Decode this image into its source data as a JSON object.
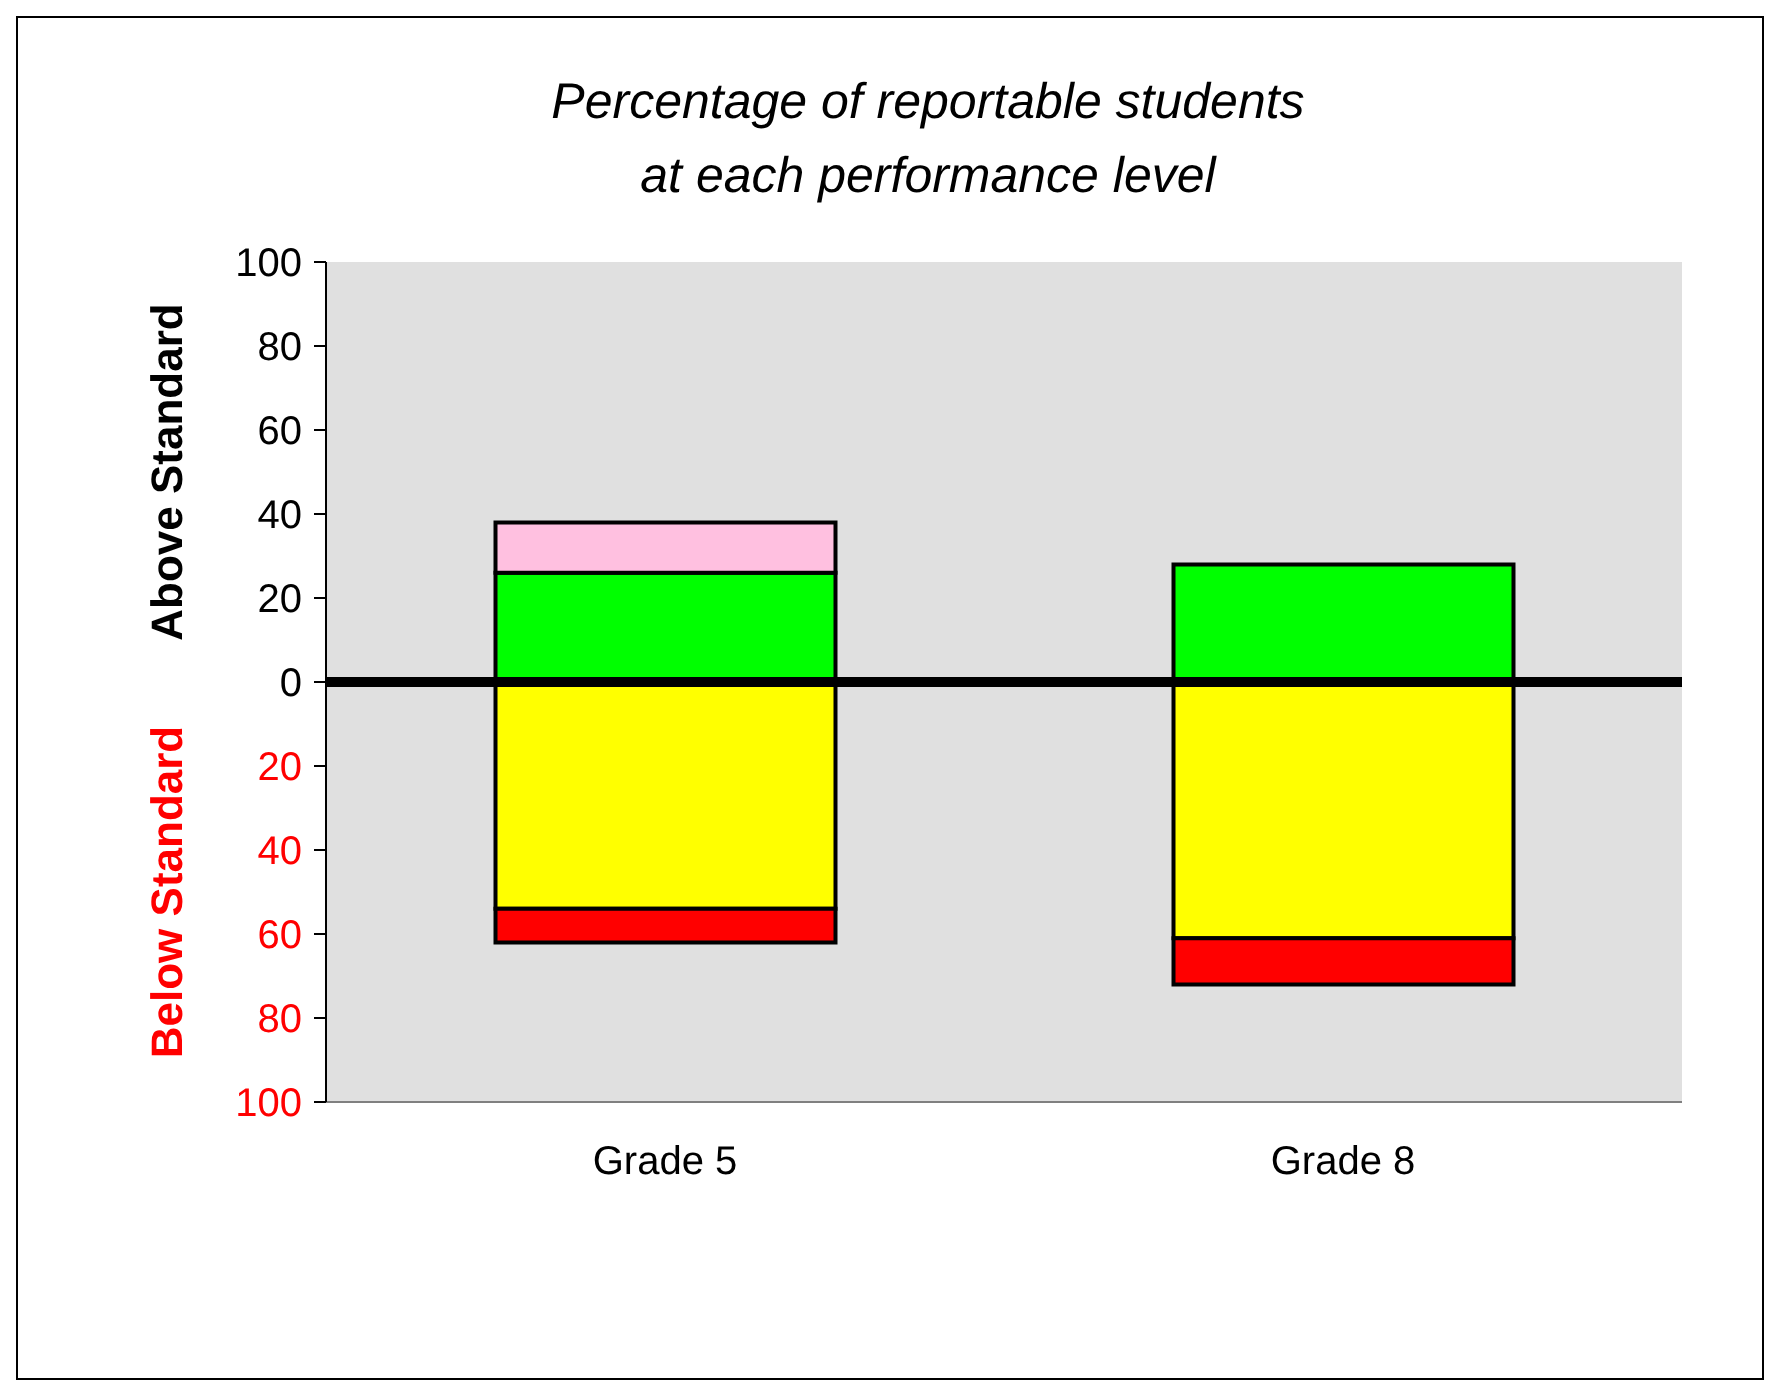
{
  "chart_data": {
    "type": "bar",
    "title": "Percentage of reportable students\nat each performance level",
    "ylabel": "Above Standard",
    "annotations": [
      "Below Standard"
    ],
    "categories": [
      "Grade 5",
      "Grade 8"
    ],
    "stacked": true,
    "series": [
      {
        "color": "#00ff00",
        "values": [
          26,
          28
        ]
      },
      {
        "color": "#ffc0e0",
        "values": [
          12,
          null
        ]
      },
      {
        "color": "#ffff00",
        "values": [
          -54,
          -61
        ]
      },
      {
        "color": "#ff0000",
        "values": [
          -8,
          -11
        ]
      }
    ],
    "ylim": [
      -100,
      100
    ],
    "yticks": [
      {
        "value": -100,
        "label": "100"
      },
      {
        "value": -80,
        "label": "80"
      },
      {
        "value": -60,
        "label": "60"
      },
      {
        "value": -40,
        "label": "40"
      },
      {
        "value": -20,
        "label": "20"
      },
      0,
      20,
      40,
      60,
      80,
      100
    ],
    "ref_lines": [
      {
        "axis": "y",
        "value": 0,
        "color": "#000000"
      }
    ]
  }
}
